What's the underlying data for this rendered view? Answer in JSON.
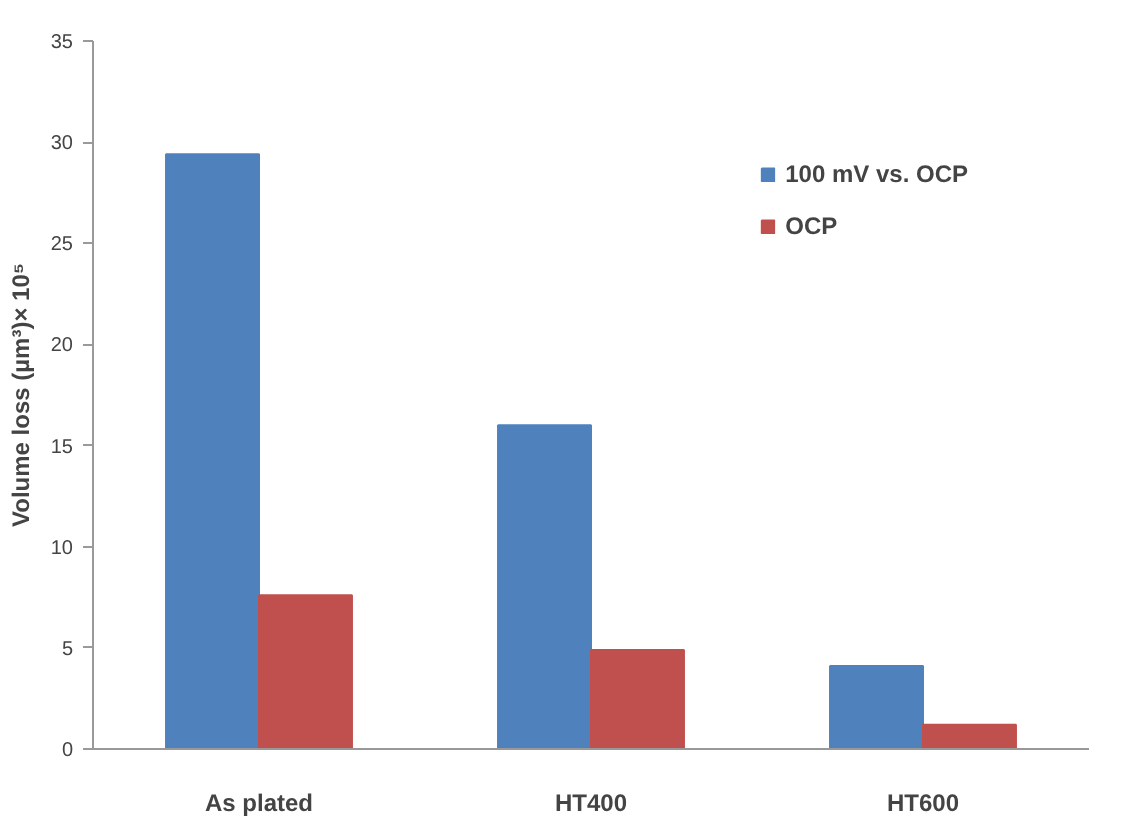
{
  "chart_data": {
    "type": "bar",
    "ylabel": "Volume loss (µm³)× 10⁵",
    "categories": [
      "As plated",
      "HT400",
      "HT600"
    ],
    "series": [
      {
        "name": "100 mV vs. OCP",
        "color": "#4f81bd",
        "values": [
          29.4,
          16.0,
          4.1
        ]
      },
      {
        "name": "OCP",
        "color": "#c0504d",
        "values": [
          7.6,
          4.9,
          1.2
        ]
      }
    ],
    "ylim": [
      0,
      35
    ],
    "yticks": [
      0,
      5,
      10,
      15,
      20,
      25,
      30,
      35
    ],
    "grid": false,
    "legend": "top right"
  }
}
